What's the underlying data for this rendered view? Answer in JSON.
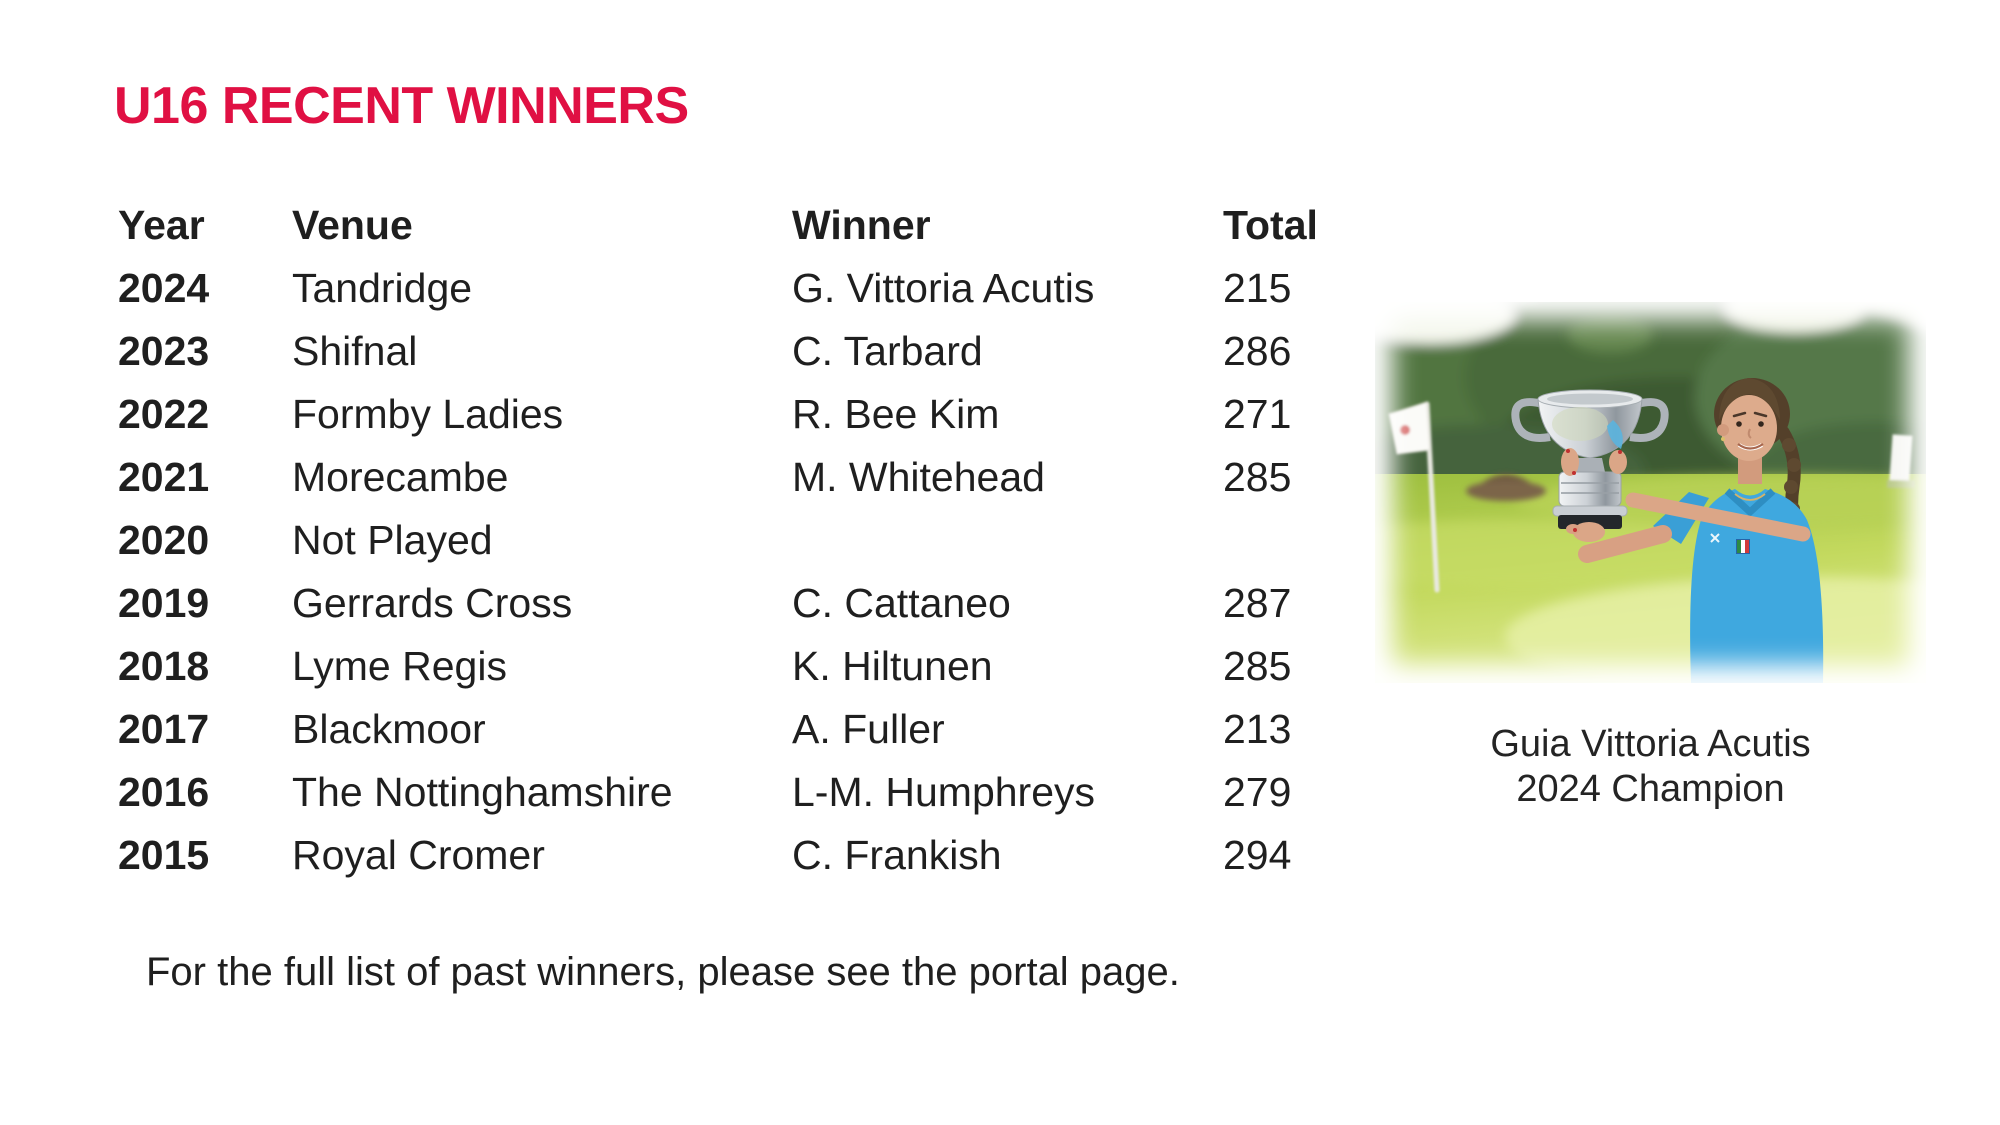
{
  "slide": {
    "title": "U16 RECENT WINNERS",
    "title_color": "#e01043",
    "text_color": "#1f1f1f",
    "background": "#ffffff"
  },
  "table": {
    "headers": [
      "Year",
      "Venue",
      "Winner",
      "Total"
    ],
    "rows": [
      {
        "year": "2024",
        "venue": "Tandridge",
        "winner": "G. Vittoria Acutis",
        "total": "215"
      },
      {
        "year": "2023",
        "venue": "Shifnal",
        "winner": "C. Tarbard",
        "total": "286"
      },
      {
        "year": "2022",
        "venue": "Formby Ladies",
        "winner": "R. Bee Kim",
        "total": "271"
      },
      {
        "year": "2021",
        "venue": "Morecambe",
        "winner": "M. Whitehead",
        "total": "285"
      },
      {
        "year": "2020",
        "venue": "Not Played",
        "winner": "",
        "total": ""
      },
      {
        "year": "2019",
        "venue": "Gerrards Cross",
        "winner": "C. Cattaneo",
        "total": "287"
      },
      {
        "year": "2018",
        "venue": "Lyme Regis",
        "winner": "K. Hiltunen",
        "total": "285"
      },
      {
        "year": "2017",
        "venue": "Blackmoor",
        "winner": "A. Fuller",
        "total": "213"
      },
      {
        "year": "2016",
        "venue": "The Nottinghamshire",
        "winner": "L-M. Humphreys",
        "total": "279"
      },
      {
        "year": "2015",
        "venue": "Royal Cromer",
        "winner": "C. Frankish",
        "total": "294"
      }
    ]
  },
  "photo": {
    "description": "Champion golfer in a blue polo shirt holding a silver trophy cup on a golf course",
    "caption_line1": "Guia Vittoria Acutis",
    "caption_line2": "2024 Champion"
  },
  "footer": {
    "note": "For the full list of past winners, please see the portal page."
  }
}
